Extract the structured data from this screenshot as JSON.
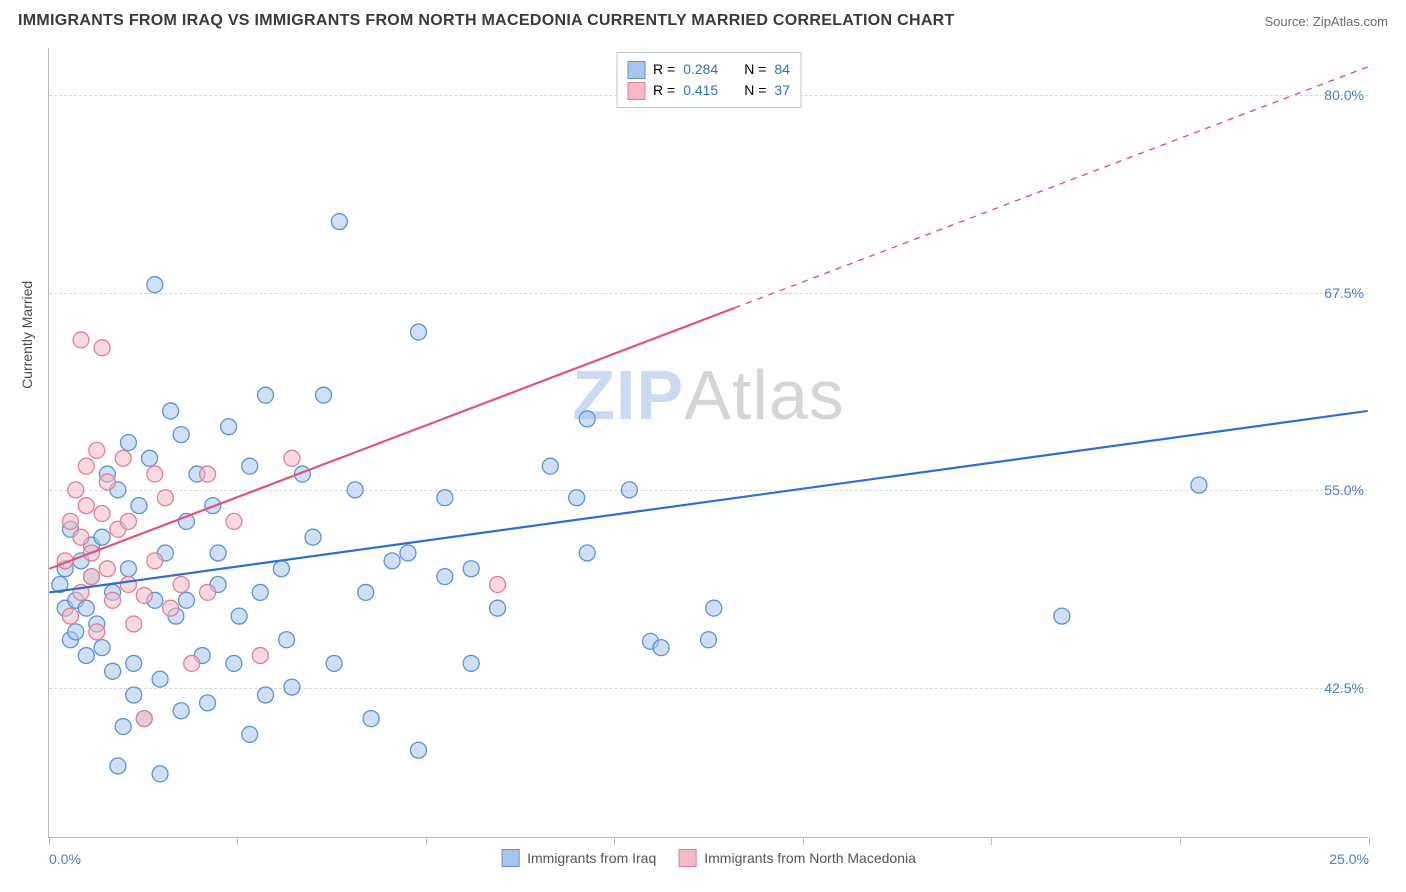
{
  "title": "IMMIGRANTS FROM IRAQ VS IMMIGRANTS FROM NORTH MACEDONIA CURRENTLY MARRIED CORRELATION CHART",
  "source_label": "Source: ZipAtlas.com",
  "watermark_a": "ZIP",
  "watermark_b": "Atlas",
  "y_axis_label": "Currently Married",
  "chart": {
    "type": "scatter-with-regression",
    "background_color": "#ffffff",
    "grid_color": "#d8d8d8",
    "axis_color": "#b9b9b9",
    "tick_label_color": "#4a7ec9",
    "tick_fontsize": 14,
    "title_fontsize": 16,
    "xlim": [
      0.0,
      25.0
    ],
    "ylim": [
      33.0,
      83.0
    ],
    "y_ticks": [
      42.5,
      55.0,
      67.5,
      80.0
    ],
    "y_tick_labels": [
      "42.5%",
      "55.0%",
      "67.5%",
      "80.0%"
    ],
    "x_ticks": [
      0.0,
      3.57,
      7.14,
      10.71,
      14.28,
      17.85,
      21.42,
      25.0
    ],
    "x_tick_labels_first": "0.0%",
    "x_tick_labels_last": "25.0%",
    "marker_radius": 8,
    "marker_fill_opacity": 0.55,
    "marker_stroke_width": 1.3,
    "line_width_solid": 2.2,
    "line_width_dash": 1.4
  },
  "series": [
    {
      "name": "Immigrants from Iraq",
      "fill_color": "#a8c6ec",
      "stroke_color": "#5a93d6",
      "line_color": "#2f6fd0",
      "r_label": "R =",
      "r_value": "0.284",
      "n_label": "N =",
      "n_value": "84",
      "trend_start": [
        0.0,
        48.5
      ],
      "trend_end": [
        25.0,
        60.0
      ],
      "trend_solid_until_x": 25.0,
      "points": [
        [
          0.2,
          49.0
        ],
        [
          0.3,
          47.5
        ],
        [
          0.3,
          50.0
        ],
        [
          0.4,
          45.5
        ],
        [
          0.4,
          52.5
        ],
        [
          0.5,
          48.0
        ],
        [
          0.5,
          46.0
        ],
        [
          0.6,
          50.5
        ],
        [
          0.7,
          47.5
        ],
        [
          0.7,
          44.5
        ],
        [
          0.8,
          49.5
        ],
        [
          0.8,
          51.5
        ],
        [
          0.9,
          46.5
        ],
        [
          1.0,
          52.0
        ],
        [
          1.0,
          45.0
        ],
        [
          1.1,
          56.0
        ],
        [
          1.2,
          48.5
        ],
        [
          1.2,
          43.5
        ],
        [
          1.3,
          55.0
        ],
        [
          1.4,
          40.0
        ],
        [
          1.5,
          58.0
        ],
        [
          1.5,
          50.0
        ],
        [
          1.6,
          44.0
        ],
        [
          1.6,
          42.0
        ],
        [
          1.7,
          54.0
        ],
        [
          1.8,
          40.5
        ],
        [
          1.9,
          57.0
        ],
        [
          2.0,
          48.0
        ],
        [
          2.0,
          68.0
        ],
        [
          2.1,
          43.0
        ],
        [
          2.2,
          51.0
        ],
        [
          2.3,
          60.0
        ],
        [
          2.4,
          47.0
        ],
        [
          2.5,
          41.0
        ],
        [
          2.5,
          58.5
        ],
        [
          2.6,
          53.0
        ],
        [
          2.6,
          48.0
        ],
        [
          2.8,
          56.0
        ],
        [
          2.9,
          44.5
        ],
        [
          3.0,
          41.5
        ],
        [
          3.1,
          54.0
        ],
        [
          3.2,
          49.0
        ],
        [
          3.2,
          51.0
        ],
        [
          3.4,
          59.0
        ],
        [
          3.5,
          44.0
        ],
        [
          3.6,
          47.0
        ],
        [
          3.8,
          56.5
        ],
        [
          3.8,
          39.5
        ],
        [
          4.0,
          48.5
        ],
        [
          4.1,
          42.0
        ],
        [
          4.1,
          61.0
        ],
        [
          4.4,
          50.0
        ],
        [
          4.5,
          45.5
        ],
        [
          4.6,
          42.5
        ],
        [
          4.8,
          56.0
        ],
        [
          5.0,
          52.0
        ],
        [
          5.2,
          61.0
        ],
        [
          5.4,
          44.0
        ],
        [
          5.5,
          72.0
        ],
        [
          5.8,
          55.0
        ],
        [
          6.0,
          48.5
        ],
        [
          6.1,
          40.5
        ],
        [
          6.5,
          50.5
        ],
        [
          6.8,
          51.0
        ],
        [
          7.0,
          65.0
        ],
        [
          7.0,
          38.5
        ],
        [
          7.5,
          49.5
        ],
        [
          7.5,
          54.5
        ],
        [
          8.0,
          50.0
        ],
        [
          8.0,
          44.0
        ],
        [
          8.5,
          47.5
        ],
        [
          9.5,
          56.5
        ],
        [
          10.0,
          54.5
        ],
        [
          10.2,
          59.5
        ],
        [
          10.2,
          51.0
        ],
        [
          11.0,
          55.0
        ],
        [
          11.4,
          45.4
        ],
        [
          11.6,
          45.0
        ],
        [
          12.5,
          45.5
        ],
        [
          12.6,
          47.5
        ],
        [
          19.2,
          47.0
        ],
        [
          21.8,
          55.3
        ],
        [
          2.1,
          37.0
        ],
        [
          1.3,
          37.5
        ]
      ]
    },
    {
      "name": "Immigrants from North Macedonia",
      "fill_color": "#f3b9c5",
      "stroke_color": "#e27f97",
      "line_color": "#e05577",
      "r_label": "R =",
      "r_value": "0.415",
      "n_label": "N =",
      "n_value": "37",
      "trend_start": [
        0.0,
        50.0
      ],
      "trend_end": [
        25.0,
        81.8
      ],
      "trend_solid_until_x": 13.0,
      "points": [
        [
          0.3,
          50.5
        ],
        [
          0.4,
          53.0
        ],
        [
          0.4,
          47.0
        ],
        [
          0.5,
          55.0
        ],
        [
          0.6,
          48.5
        ],
        [
          0.6,
          52.0
        ],
        [
          0.7,
          56.5
        ],
        [
          0.7,
          54.0
        ],
        [
          0.8,
          49.5
        ],
        [
          0.8,
          51.0
        ],
        [
          0.9,
          57.5
        ],
        [
          0.9,
          46.0
        ],
        [
          1.0,
          64.0
        ],
        [
          1.0,
          53.5
        ],
        [
          1.1,
          50.0
        ],
        [
          1.1,
          55.5
        ],
        [
          1.2,
          48.0
        ],
        [
          1.3,
          52.5
        ],
        [
          1.4,
          57.0
        ],
        [
          1.5,
          49.0
        ],
        [
          1.5,
          53.0
        ],
        [
          1.6,
          46.5
        ],
        [
          1.8,
          40.5
        ],
        [
          1.8,
          48.3
        ],
        [
          2.0,
          56.0
        ],
        [
          2.0,
          50.5
        ],
        [
          2.2,
          54.5
        ],
        [
          2.3,
          47.5
        ],
        [
          2.5,
          49.0
        ],
        [
          2.7,
          44.0
        ],
        [
          3.0,
          48.5
        ],
        [
          3.0,
          56.0
        ],
        [
          3.5,
          53.0
        ],
        [
          4.0,
          44.5
        ],
        [
          4.6,
          57.0
        ],
        [
          8.5,
          49.0
        ],
        [
          0.6,
          64.5
        ]
      ]
    }
  ]
}
